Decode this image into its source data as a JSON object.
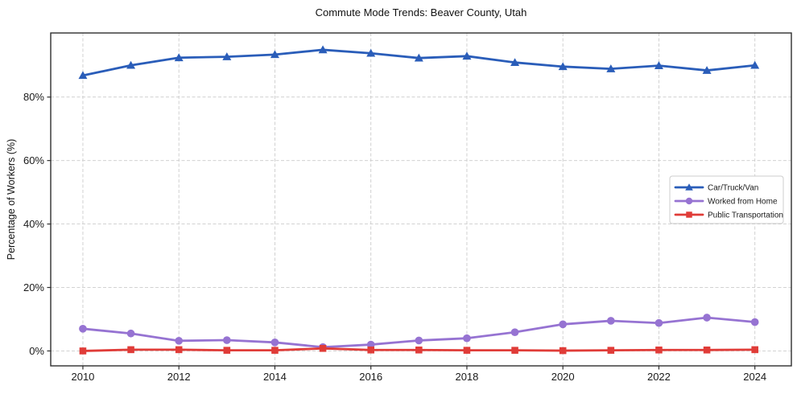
{
  "chart_data": {
    "type": "line",
    "title": "Commute Mode Trends: Beaver County, Utah",
    "xlabel": "",
    "ylabel": "Percentage of Workers (%)",
    "x": [
      2010,
      2011,
      2012,
      2013,
      2014,
      2015,
      2016,
      2017,
      2018,
      2019,
      2020,
      2021,
      2022,
      2023,
      2024
    ],
    "xticks": [
      2010,
      2012,
      2014,
      2016,
      2018,
      2020,
      2022,
      2024
    ],
    "xtick_labels": [
      "2010",
      "2012",
      "2014",
      "2016",
      "2018",
      "2020",
      "2022",
      "2024"
    ],
    "yticks": [
      0,
      20,
      40,
      60,
      80
    ],
    "ytick_labels": [
      "0%",
      "20%",
      "40%",
      "60%",
      "80%"
    ],
    "xlim": [
      2009.33,
      2024.76
    ],
    "ylim": [
      -4.7,
      100.2
    ],
    "grid": true,
    "grid_style": "dashed",
    "legend_position": "center-right",
    "series": [
      {
        "name": "Car/Truck/Van",
        "marker": "triangle",
        "color": "#2a5db9",
        "values": [
          86.8,
          90.0,
          92.4,
          92.7,
          93.4,
          94.9,
          93.8,
          92.3,
          92.9,
          90.9,
          89.6,
          88.9,
          89.9,
          88.4,
          90.0
        ]
      },
      {
        "name": "Worked from Home",
        "marker": "circle",
        "color": "#9673d2",
        "values": [
          7.0,
          5.5,
          3.2,
          3.4,
          2.7,
          1.2,
          2.0,
          3.3,
          4.0,
          5.9,
          8.4,
          9.5,
          8.8,
          10.5,
          9.1
        ]
      },
      {
        "name": "Public Transportation",
        "marker": "square",
        "color": "#e03c38",
        "values": [
          0.0,
          0.4,
          0.4,
          0.2,
          0.2,
          0.8,
          0.3,
          0.3,
          0.2,
          0.2,
          0.1,
          0.2,
          0.3,
          0.3,
          0.4
        ]
      }
    ],
    "colors": {
      "grid": "#cccccc",
      "spine": "#2e2e2e",
      "text": "#1a1a1a",
      "background": "#ffffff"
    }
  }
}
